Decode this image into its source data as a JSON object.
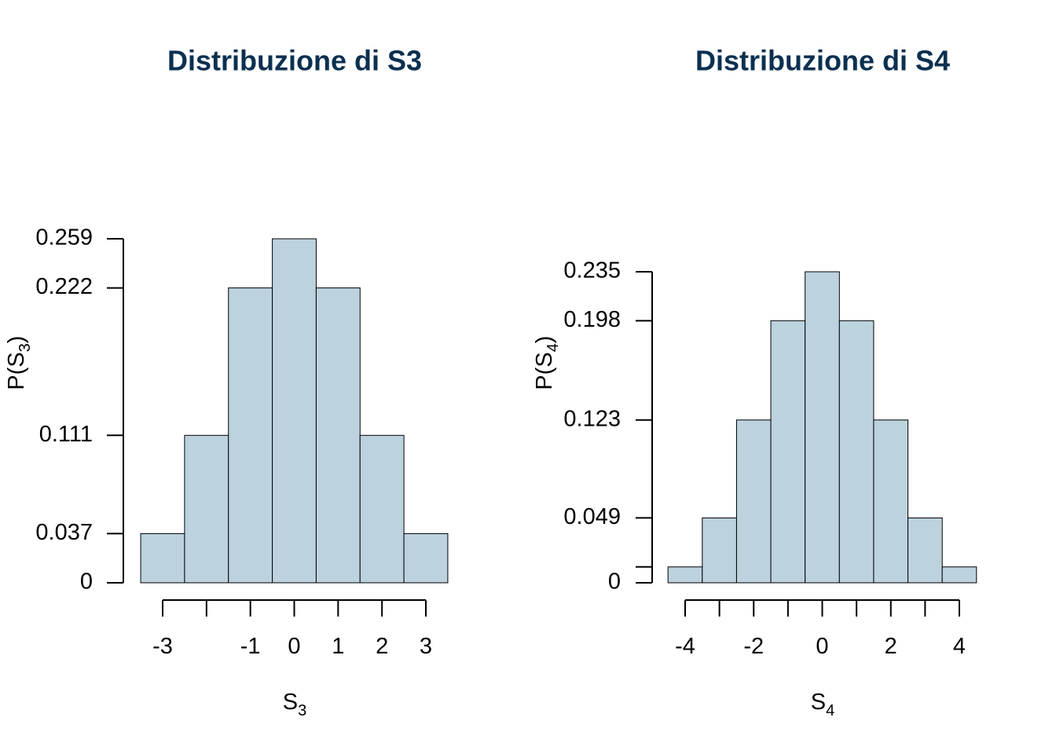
{
  "colors": {
    "title": "#0b3050",
    "bar_fill": "#bcd2df",
    "bar_stroke": "#000000",
    "axis": "#000000",
    "text": "#000000"
  },
  "chart_data": [
    {
      "type": "bar",
      "title": "Distribuzione di S3",
      "xlabel_main": "S",
      "xlabel_sub": "3",
      "ylabel_main": "P(S",
      "ylabel_sub": "3",
      "ylabel_close": ")",
      "x": [
        -3,
        -2,
        -1,
        0,
        1,
        2,
        3
      ],
      "values": [
        0.037,
        0.111,
        0.222,
        0.259,
        0.222,
        0.111,
        0.037
      ],
      "xticks": [
        -3,
        -2,
        -1,
        0,
        1,
        2,
        3
      ],
      "xtick_labels": [
        "-3",
        "",
        "-1",
        "0",
        "1",
        "2",
        "3"
      ],
      "yticks": [
        0,
        0.037,
        0.111,
        0.222,
        0.259
      ],
      "ytick_labels": [
        "0",
        "0.037",
        "0.111",
        "0.222",
        "0.259"
      ],
      "xlim": [
        -3.5,
        3.5
      ],
      "ylim": [
        0,
        0.259
      ],
      "grid": false,
      "legend": "none"
    },
    {
      "type": "bar",
      "title": "Distribuzione di S4",
      "xlabel_main": "S",
      "xlabel_sub": "4",
      "ylabel_main": "P(S",
      "ylabel_sub": "4",
      "ylabel_close": ")",
      "x": [
        -4,
        -3,
        -2,
        -1,
        0,
        1,
        2,
        3,
        4
      ],
      "values": [
        0.012,
        0.049,
        0.123,
        0.198,
        0.235,
        0.198,
        0.123,
        0.049,
        0.012
      ],
      "xticks": [
        -4,
        -3,
        -2,
        -1,
        0,
        1,
        2,
        3,
        4
      ],
      "xtick_labels": [
        "-4",
        "",
        "-2",
        "",
        "0",
        "",
        "2",
        "",
        "4"
      ],
      "yticks": [
        0,
        0.012,
        0.049,
        0.123,
        0.198,
        0.235
      ],
      "ytick_labels": [
        "0",
        "",
        "0.049",
        "0.123",
        "0.198",
        "0.235"
      ],
      "xlim": [
        -4.5,
        4.5
      ],
      "ylim": [
        0,
        0.235
      ],
      "grid": false,
      "legend": "none"
    }
  ]
}
